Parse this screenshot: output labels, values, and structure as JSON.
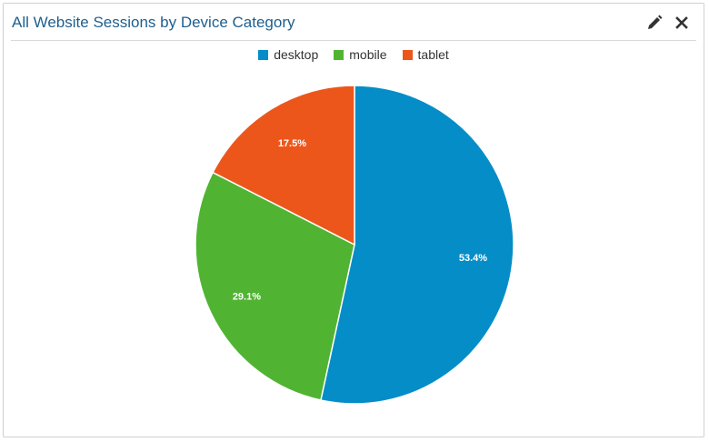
{
  "header": {
    "title": "All Website Sessions by Device Category",
    "edit_icon": "pencil-icon",
    "close_icon": "close-icon"
  },
  "chart_data": {
    "type": "pie",
    "title": "All Website Sessions by Device Category",
    "legend_position": "top",
    "slices": [
      {
        "label": "desktop",
        "value": 53.4,
        "display": "53.4%",
        "color": "#058dc7"
      },
      {
        "label": "mobile",
        "value": 29.1,
        "display": "29.1%",
        "color": "#50b432"
      },
      {
        "label": "tablet",
        "value": 17.5,
        "display": "17.5%",
        "color": "#ed561b"
      }
    ]
  }
}
